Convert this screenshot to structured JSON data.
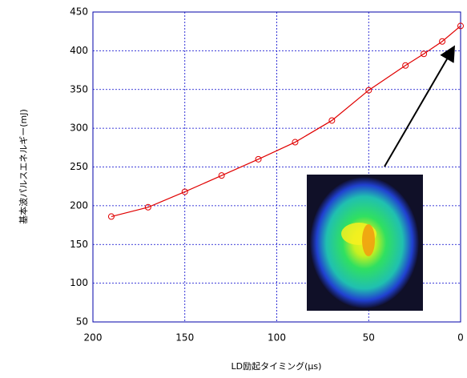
{
  "chart_data": {
    "type": "line",
    "x_label": "LD励起タイミング(μs)",
    "y_label": "基本波パルスエネルギー(mJ)",
    "x": [
      190,
      170,
      150,
      130,
      110,
      90,
      70,
      50,
      30,
      20,
      10,
      0
    ],
    "series": [
      {
        "color": "#e00000",
        "values": [
          186,
          198,
          218,
          239,
          260,
          282,
          310,
          349,
          381,
          396,
          412,
          432
        ]
      }
    ],
    "xlim": [
      200,
      0
    ],
    "xticks": [
      200,
      150,
      100,
      50,
      0
    ],
    "ylim": [
      50,
      450
    ],
    "yticks": [
      50,
      100,
      150,
      200,
      250,
      300,
      350,
      400,
      450
    ],
    "grid": true
  }
}
